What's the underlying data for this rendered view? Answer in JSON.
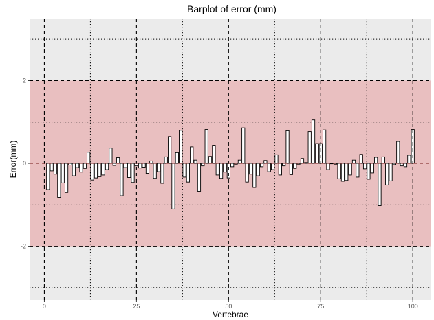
{
  "chart_data": {
    "type": "bar",
    "title": "Barplot of error (mm)",
    "xlabel": "Vertebrae",
    "ylabel": "Error(mm)",
    "xlim": [
      -4,
      105
    ],
    "ylim": [
      -3.3,
      3.5
    ],
    "xticks": [
      0,
      25,
      50,
      75,
      100
    ],
    "yticks": [
      -2,
      0,
      2
    ],
    "grid": true,
    "band": {
      "from": -2,
      "to": 2,
      "color": "#e9bfc0"
    },
    "reference_lines": {
      "mean_y": 0,
      "limits_y": [
        -2,
        2
      ],
      "dotted_y": [
        -3,
        -1,
        1,
        3
      ],
      "dashed_x": [
        0,
        25,
        50,
        75,
        100
      ],
      "dotted_x": [
        12.5,
        37.5,
        62.5,
        87.5
      ]
    },
    "colors": {
      "panel": "#ebebeb",
      "band": "#e9bfc0",
      "bar_fill": "#ffffff",
      "bar_outline": "#000000",
      "mean_line": "#8b3a3a"
    },
    "x": [
      1,
      2,
      3,
      4,
      5,
      6,
      7,
      8,
      9,
      10,
      11,
      12,
      13,
      14,
      15,
      16,
      17,
      18,
      19,
      20,
      21,
      22,
      23,
      24,
      25,
      26,
      27,
      28,
      29,
      30,
      31,
      32,
      33,
      34,
      35,
      36,
      37,
      38,
      39,
      40,
      41,
      42,
      43,
      44,
      45,
      46,
      47,
      48,
      49,
      50,
      51,
      52,
      53,
      54,
      55,
      56,
      57,
      58,
      59,
      60,
      61,
      62,
      63,
      64,
      65,
      66,
      67,
      68,
      69,
      70,
      71,
      72,
      73,
      74,
      75,
      76,
      77,
      78,
      79,
      80,
      81,
      82,
      83,
      84,
      85,
      86,
      87,
      88,
      89,
      90,
      91,
      92,
      93,
      94,
      95,
      96,
      97,
      98,
      99,
      100
    ],
    "values": [
      -0.63,
      -0.18,
      -0.26,
      -0.82,
      -0.47,
      -0.7,
      -0.04,
      -0.3,
      -0.1,
      -0.21,
      -0.12,
      0.27,
      -0.4,
      -0.35,
      -0.32,
      -0.28,
      -0.15,
      0.37,
      -0.05,
      0.14,
      -0.78,
      -0.1,
      -0.34,
      -0.46,
      -0.06,
      -0.11,
      -0.09,
      -0.24,
      0.06,
      -0.36,
      -0.2,
      -0.48,
      0.16,
      0.65,
      -1.1,
      0.26,
      0.8,
      -0.33,
      -0.45,
      0.4,
      0.08,
      -0.67,
      -0.06,
      0.82,
      0.17,
      0.44,
      -0.28,
      -0.36,
      -0.21,
      -0.35,
      -0.08,
      -0.02,
      0.08,
      0.86,
      -0.45,
      -0.26,
      -0.58,
      -0.3,
      -0.08,
      0.07,
      -0.2,
      -0.15,
      0.21,
      -0.28,
      -0.06,
      0.79,
      -0.27,
      -0.12,
      -0.02,
      0.12,
      0.02,
      0.77,
      1.05,
      0.48,
      0.48,
      0.81,
      -0.15,
      -0.01,
      -0.02,
      -0.37,
      -0.43,
      -0.41,
      -0.28,
      0.08,
      -0.33,
      0.22,
      -0.13,
      -0.38,
      -0.23,
      0.15,
      -1.02,
      0.16,
      -0.52,
      -0.42,
      -0.03,
      0.53,
      -0.06,
      -0.08,
      0.2,
      0.82
    ]
  }
}
